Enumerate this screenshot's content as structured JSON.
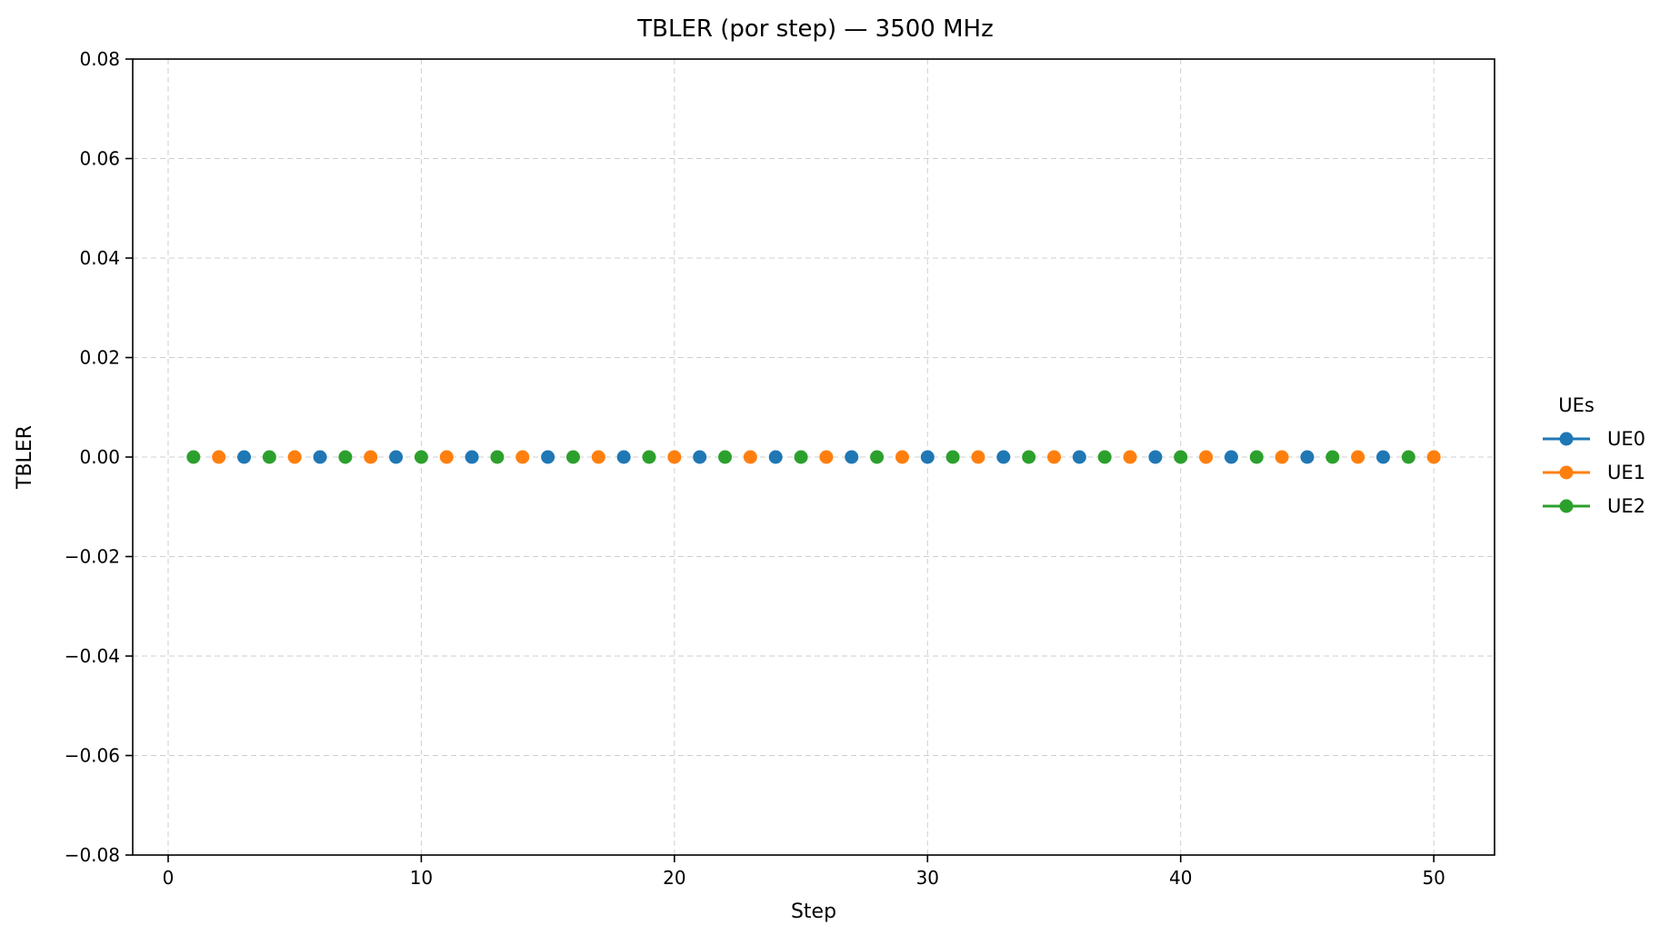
{
  "chart_data": {
    "type": "scatter",
    "title": "TBLER (por step) — 3500 MHz",
    "xlabel": "Step",
    "ylabel": "TBLER",
    "xlim": [
      -1.4,
      52.4
    ],
    "ylim": [
      -0.08,
      0.08
    ],
    "xticks": [
      0,
      10,
      20,
      30,
      40,
      50
    ],
    "xtick_labels": [
      "0",
      "10",
      "20",
      "30",
      "40",
      "50"
    ],
    "yticks": [
      -0.08,
      -0.06,
      -0.04,
      -0.02,
      0.0,
      0.02,
      0.04,
      0.06,
      0.08
    ],
    "ytick_labels": [
      "−0.08",
      "−0.06",
      "−0.04",
      "−0.02",
      "0.00",
      "0.02",
      "0.04",
      "0.06",
      "0.08"
    ],
    "grid": true,
    "legend": {
      "title": "UEs",
      "placement": "outside-right"
    },
    "series": [
      {
        "name": "UE0",
        "color": "#1f77b4",
        "x": [
          3,
          6,
          9,
          12,
          15,
          18,
          21,
          24,
          27,
          30,
          33,
          36,
          39,
          42,
          45,
          48
        ],
        "y": [
          0,
          0,
          0,
          0,
          0,
          0,
          0,
          0,
          0,
          0,
          0,
          0,
          0,
          0,
          0,
          0
        ]
      },
      {
        "name": "UE1",
        "color": "#ff7f0e",
        "x": [
          2,
          5,
          8,
          11,
          14,
          17,
          20,
          23,
          26,
          29,
          32,
          35,
          38,
          41,
          44,
          47,
          50
        ],
        "y": [
          0,
          0,
          0,
          0,
          0,
          0,
          0,
          0,
          0,
          0,
          0,
          0,
          0,
          0,
          0,
          0,
          0
        ]
      },
      {
        "name": "UE2",
        "color": "#2ca02c",
        "x": [
          1,
          4,
          7,
          10,
          13,
          16,
          19,
          22,
          25,
          28,
          31,
          34,
          37,
          40,
          43,
          46,
          49
        ],
        "y": [
          0,
          0,
          0,
          0,
          0,
          0,
          0,
          0,
          0,
          0,
          0,
          0,
          0,
          0,
          0,
          0,
          0
        ]
      }
    ]
  }
}
